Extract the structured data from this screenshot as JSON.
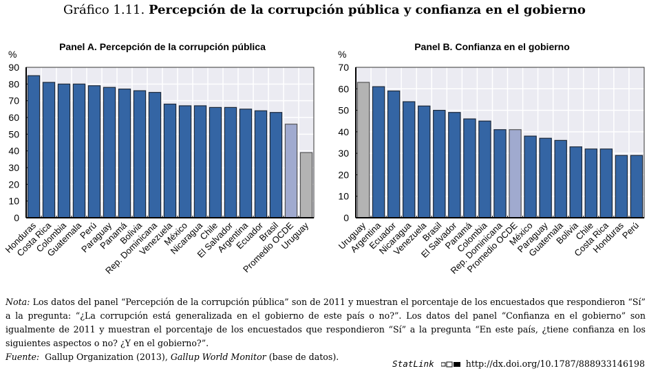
{
  "figure": {
    "number": "Gráfico 1.11.",
    "title": "Percepción de la corrupción pública y confianza en el gobierno"
  },
  "colors": {
    "bar_country": "#3465a4",
    "bar_oecd": "#a0aacf",
    "bar_uruguay": "#b3b3b3",
    "plot_bg": "#ebebf2",
    "grid": "#ffffff",
    "bar_edge": "#1e2a3a"
  },
  "chart_data": [
    {
      "type": "bar",
      "title": "Panel A. Percepción de la corrupción pública",
      "ylabel": "%",
      "xlabel": "",
      "ylim": [
        0,
        90
      ],
      "yticks": [
        0,
        10,
        20,
        30,
        40,
        50,
        60,
        70,
        80,
        90
      ],
      "grid": true,
      "categories": [
        "Honduras",
        "Costa Rica",
        "Colombia",
        "Guatemala",
        "Perú",
        "Paraguay",
        "Panamá",
        "Bolivia",
        "Rep. Dominicana",
        "Venezuela",
        "México",
        "Nicaragua",
        "Chile",
        "El Salvador",
        "Argentina",
        "Ecuador",
        "Brasil",
        "Promedio OCDE",
        "Uruguay"
      ],
      "values": [
        85,
        81,
        80,
        80,
        79,
        78,
        77,
        76,
        75,
        68,
        67,
        67,
        66,
        66,
        65,
        64,
        63,
        56,
        39
      ],
      "highlight": {
        "Promedio OCDE": "oecd",
        "Uruguay": "uruguay"
      }
    },
    {
      "type": "bar",
      "title": "Panel B. Confianza en el gobierno",
      "ylabel": "%",
      "xlabel": "",
      "ylim": [
        0,
        70
      ],
      "yticks": [
        0,
        10,
        20,
        30,
        40,
        50,
        60,
        70
      ],
      "grid": true,
      "categories": [
        "Uruguay",
        "Argentina",
        "Ecuador",
        "Nicaragua",
        "Venezuela",
        "Brasil",
        "El Salvador",
        "Panamá",
        "Colombia",
        "Rep. Dominicana",
        "Promedio OCDE",
        "México",
        "Paraguay",
        "Guatemala",
        "Bolivia",
        "Chile",
        "Costa Rica",
        "Honduras",
        "Perú"
      ],
      "values": [
        63,
        61,
        59,
        54,
        52,
        50,
        49,
        46,
        45,
        41,
        41,
        38,
        37,
        36,
        33,
        32,
        32,
        29,
        29
      ],
      "highlight": {
        "Promedio OCDE": "oecd",
        "Uruguay": "uruguay"
      }
    }
  ],
  "notes": {
    "nota_label": "Nota:",
    "nota_text": " Los datos del panel “Percepción de la corrupción pública” son de 2011 y muestran el porcentaje de los encuestados que respondieron “Sí” a la pregunta: “¿La corrupción está generalizada en el gobierno de este país o no?”. Los datos del panel “Confianza en el gobierno” son igualmente de 2011 y muestran el porcentaje de los encuestados que respondieron “Sí” a la pregunta “En este país, ¿tiene confianza en los siguientes aspectos o no? ¿Y en el gobierno?”.",
    "fuente_label": "Fuente:",
    "fuente_pre": "  Gallup Organization (2013), ",
    "fuente_italic": "Gallup World Monitor",
    "fuente_post": " (base de datos)."
  },
  "statlink": {
    "label": "StatLink",
    "icon": "statlink-logo-icon",
    "url": "http://dx.doi.org/10.1787/888933146198"
  }
}
